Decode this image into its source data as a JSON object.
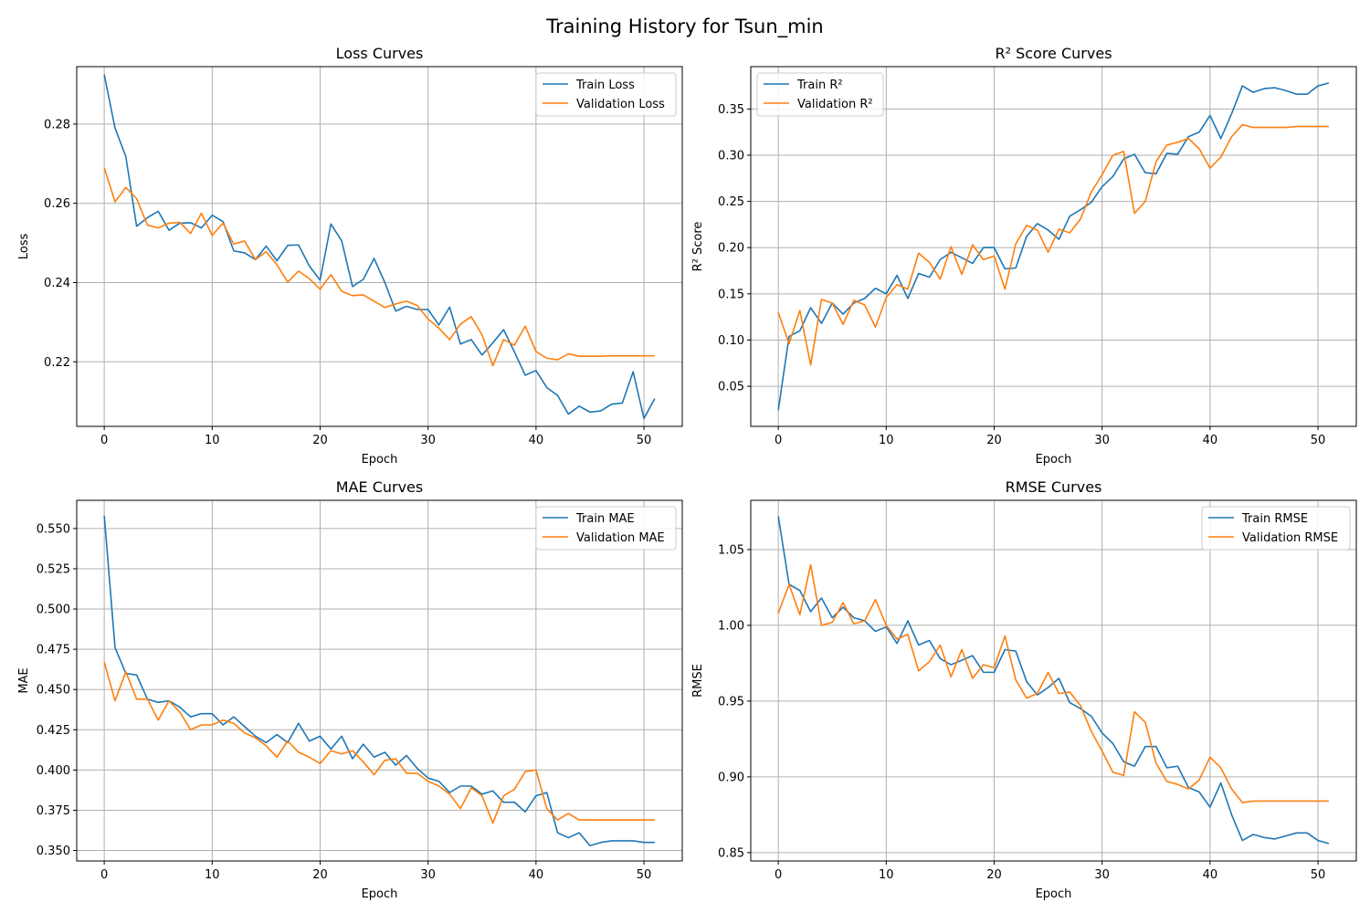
{
  "figure": {
    "title": "Training History for Tsun_min"
  },
  "colors": {
    "train": "#1f77b4",
    "validation": "#ff7f0e",
    "grid": "#b0b0b0"
  },
  "chart_data": [
    {
      "type": "line",
      "title": "Loss Curves",
      "xlabel": "Epoch",
      "ylabel": "Loss",
      "xlim": [
        -2.55,
        53.55
      ],
      "ylim": [
        0.2037,
        0.2945
      ],
      "xticks": [
        0,
        10,
        20,
        30,
        40,
        50
      ],
      "yticks": [
        0.22,
        0.24,
        0.26,
        0.28
      ],
      "ytick_labels": [
        "0.22",
        "0.24",
        "0.26",
        "0.28"
      ],
      "grid": true,
      "legend": "upper right",
      "x": [
        0,
        1,
        2,
        3,
        4,
        5,
        6,
        7,
        8,
        9,
        10,
        11,
        12,
        13,
        14,
        15,
        16,
        17,
        18,
        19,
        20,
        21,
        22,
        23,
        24,
        25,
        26,
        27,
        28,
        29,
        30,
        31,
        32,
        33,
        34,
        35,
        36,
        37,
        38,
        39,
        40,
        41,
        42,
        43,
        44,
        45,
        46,
        47,
        48,
        49,
        50,
        51
      ],
      "series": [
        {
          "name": "Train Loss",
          "values": [
            0.2925,
            0.279,
            0.2718,
            0.2542,
            0.2564,
            0.258,
            0.2532,
            0.255,
            0.2551,
            0.2538,
            0.257,
            0.2554,
            0.248,
            0.2475,
            0.2458,
            0.2492,
            0.2455,
            0.2494,
            0.2495,
            0.2442,
            0.2406,
            0.2548,
            0.2505,
            0.239,
            0.2408,
            0.2461,
            0.24,
            0.2328,
            0.234,
            0.2332,
            0.2332,
            0.2293,
            0.2338,
            0.2245,
            0.2256,
            0.2217,
            0.2248,
            0.2281,
            0.2225,
            0.2166,
            0.2178,
            0.2135,
            0.2115,
            0.2068,
            0.2088,
            0.2073,
            0.2076,
            0.2093,
            0.2096,
            0.2175,
            0.2057,
            0.2107
          ]
        },
        {
          "name": "Validation Loss",
          "values": [
            0.269,
            0.2604,
            0.264,
            0.2612,
            0.2545,
            0.2538,
            0.255,
            0.2552,
            0.2524,
            0.2575,
            0.2519,
            0.255,
            0.2497,
            0.2505,
            0.2458,
            0.2478,
            0.2445,
            0.2401,
            0.2429,
            0.241,
            0.2383,
            0.242,
            0.2378,
            0.2367,
            0.2369,
            0.2353,
            0.2337,
            0.2346,
            0.2353,
            0.2342,
            0.2308,
            0.2285,
            0.2256,
            0.2295,
            0.2314,
            0.2268,
            0.219,
            0.2256,
            0.2242,
            0.229,
            0.2226,
            0.2209,
            0.2205,
            0.222,
            0.2214,
            0.2214,
            0.2214,
            0.2215,
            0.2215,
            0.2215,
            0.2215,
            0.2215
          ]
        }
      ]
    },
    {
      "type": "line",
      "title": "R² Score Curves",
      "xlabel": "Epoch",
      "ylabel": "R² Score",
      "xlim": [
        -2.55,
        53.55
      ],
      "ylim": [
        0.0066,
        0.3958
      ],
      "xticks": [
        0,
        10,
        20,
        30,
        40,
        50
      ],
      "yticks": [
        0.05,
        0.1,
        0.15,
        0.2,
        0.25,
        0.3,
        0.35
      ],
      "ytick_labels": [
        "0.05",
        "0.10",
        "0.15",
        "0.20",
        "0.25",
        "0.30",
        "0.35"
      ],
      "grid": true,
      "legend": "upper left",
      "x": [
        0,
        1,
        2,
        3,
        4,
        5,
        6,
        7,
        8,
        9,
        10,
        11,
        12,
        13,
        14,
        15,
        16,
        17,
        18,
        19,
        20,
        21,
        22,
        23,
        24,
        25,
        26,
        27,
        28,
        29,
        30,
        31,
        32,
        33,
        34,
        35,
        36,
        37,
        38,
        39,
        40,
        41,
        42,
        43,
        44,
        45,
        46,
        47,
        48,
        49,
        50,
        51
      ],
      "series": [
        {
          "name": "Train R²",
          "values": [
            0.024,
            0.104,
            0.11,
            0.135,
            0.118,
            0.14,
            0.128,
            0.14,
            0.145,
            0.156,
            0.15,
            0.17,
            0.145,
            0.172,
            0.168,
            0.187,
            0.195,
            0.189,
            0.183,
            0.2,
            0.2,
            0.177,
            0.178,
            0.212,
            0.226,
            0.219,
            0.209,
            0.234,
            0.241,
            0.249,
            0.266,
            0.277,
            0.296,
            0.301,
            0.281,
            0.28,
            0.302,
            0.301,
            0.32,
            0.325,
            0.343,
            0.318,
            0.345,
            0.375,
            0.368,
            0.372,
            0.373,
            0.37,
            0.366,
            0.366,
            0.375,
            0.378
          ]
        },
        {
          "name": "Validation R²",
          "values": [
            0.13,
            0.096,
            0.132,
            0.073,
            0.144,
            0.14,
            0.117,
            0.143,
            0.138,
            0.114,
            0.146,
            0.16,
            0.155,
            0.194,
            0.184,
            0.166,
            0.201,
            0.171,
            0.203,
            0.187,
            0.191,
            0.155,
            0.204,
            0.224,
            0.219,
            0.195,
            0.22,
            0.216,
            0.231,
            0.26,
            0.279,
            0.3,
            0.304,
            0.237,
            0.25,
            0.293,
            0.311,
            0.314,
            0.318,
            0.307,
            0.286,
            0.298,
            0.32,
            0.333,
            0.33,
            0.33,
            0.33,
            0.33,
            0.331,
            0.331,
            0.331,
            0.331
          ]
        }
      ]
    },
    {
      "type": "line",
      "title": "MAE Curves",
      "xlabel": "Epoch",
      "ylabel": "MAE",
      "xlim": [
        -2.55,
        53.55
      ],
      "ylim": [
        0.3435,
        0.5675
      ],
      "xticks": [
        0,
        10,
        20,
        30,
        40,
        50
      ],
      "yticks": [
        0.35,
        0.375,
        0.4,
        0.425,
        0.45,
        0.475,
        0.5,
        0.525,
        0.55
      ],
      "ytick_labels": [
        "0.350",
        "0.375",
        "0.400",
        "0.425",
        "0.450",
        "0.475",
        "0.500",
        "0.525",
        "0.550"
      ],
      "grid": true,
      "legend": "upper right",
      "x": [
        0,
        1,
        2,
        3,
        4,
        5,
        6,
        7,
        8,
        9,
        10,
        11,
        12,
        13,
        14,
        15,
        16,
        17,
        18,
        19,
        20,
        21,
        22,
        23,
        24,
        25,
        26,
        27,
        28,
        29,
        30,
        31,
        32,
        33,
        34,
        35,
        36,
        37,
        38,
        39,
        40,
        41,
        42,
        43,
        44,
        45,
        46,
        47,
        48,
        49,
        50,
        51
      ],
      "series": [
        {
          "name": "Train MAE",
          "values": [
            0.558,
            0.476,
            0.46,
            0.459,
            0.444,
            0.442,
            0.443,
            0.439,
            0.433,
            0.435,
            0.435,
            0.428,
            0.433,
            0.427,
            0.421,
            0.417,
            0.422,
            0.417,
            0.429,
            0.418,
            0.421,
            0.413,
            0.421,
            0.407,
            0.416,
            0.408,
            0.411,
            0.403,
            0.409,
            0.401,
            0.395,
            0.393,
            0.386,
            0.39,
            0.39,
            0.385,
            0.387,
            0.38,
            0.38,
            0.374,
            0.384,
            0.386,
            0.361,
            0.358,
            0.361,
            0.353,
            0.355,
            0.356,
            0.356,
            0.356,
            0.355,
            0.355
          ]
        },
        {
          "name": "Validation MAE",
          "values": [
            0.467,
            0.443,
            0.461,
            0.444,
            0.444,
            0.431,
            0.443,
            0.436,
            0.425,
            0.428,
            0.428,
            0.431,
            0.429,
            0.423,
            0.42,
            0.415,
            0.408,
            0.418,
            0.411,
            0.408,
            0.404,
            0.412,
            0.41,
            0.412,
            0.405,
            0.397,
            0.406,
            0.407,
            0.398,
            0.398,
            0.393,
            0.39,
            0.385,
            0.376,
            0.389,
            0.384,
            0.367,
            0.384,
            0.388,
            0.399,
            0.4,
            0.376,
            0.369,
            0.373,
            0.369,
            0.369,
            0.369,
            0.369,
            0.369,
            0.369,
            0.369,
            0.369
          ]
        }
      ]
    },
    {
      "type": "line",
      "title": "RMSE Curves",
      "xlabel": "Epoch",
      "ylabel": "RMSE",
      "xlim": [
        -2.55,
        53.55
      ],
      "ylim": [
        0.8445,
        1.0825
      ],
      "xticks": [
        0,
        10,
        20,
        30,
        40,
        50
      ],
      "yticks": [
        0.85,
        0.9,
        0.95,
        1.0,
        1.05
      ],
      "ytick_labels": [
        "0.85",
        "0.90",
        "0.95",
        "1.00",
        "1.05"
      ],
      "grid": true,
      "legend": "upper right",
      "x": [
        0,
        1,
        2,
        3,
        4,
        5,
        6,
        7,
        8,
        9,
        10,
        11,
        12,
        13,
        14,
        15,
        16,
        17,
        18,
        19,
        20,
        21,
        22,
        23,
        24,
        25,
        26,
        27,
        28,
        29,
        30,
        31,
        32,
        33,
        34,
        35,
        36,
        37,
        38,
        39,
        40,
        41,
        42,
        43,
        44,
        45,
        46,
        47,
        48,
        49,
        50,
        51
      ],
      "series": [
        {
          "name": "Train RMSE",
          "values": [
            1.072,
            1.027,
            1.023,
            1.009,
            1.018,
            1.005,
            1.012,
            1.005,
            1.003,
            0.996,
            0.999,
            0.988,
            1.003,
            0.987,
            0.99,
            0.978,
            0.974,
            0.977,
            0.98,
            0.969,
            0.969,
            0.984,
            0.983,
            0.963,
            0.954,
            0.959,
            0.965,
            0.949,
            0.945,
            0.94,
            0.929,
            0.922,
            0.91,
            0.907,
            0.92,
            0.92,
            0.906,
            0.907,
            0.893,
            0.89,
            0.88,
            0.896,
            0.875,
            0.858,
            0.862,
            0.86,
            0.859,
            0.861,
            0.863,
            0.863,
            0.858,
            0.856
          ]
        },
        {
          "name": "Validation RMSE",
          "values": [
            1.008,
            1.027,
            1.007,
            1.04,
            1.0,
            1.002,
            1.015,
            1.001,
            1.003,
            1.017,
            1.0,
            0.991,
            0.994,
            0.97,
            0.976,
            0.987,
            0.966,
            0.984,
            0.965,
            0.974,
            0.972,
            0.993,
            0.964,
            0.952,
            0.955,
            0.969,
            0.955,
            0.956,
            0.947,
            0.93,
            0.917,
            0.903,
            0.901,
            0.943,
            0.936,
            0.909,
            0.897,
            0.895,
            0.892,
            0.898,
            0.913,
            0.906,
            0.892,
            0.883,
            0.884,
            0.884,
            0.884,
            0.884,
            0.884,
            0.884,
            0.884,
            0.884
          ]
        }
      ]
    }
  ]
}
